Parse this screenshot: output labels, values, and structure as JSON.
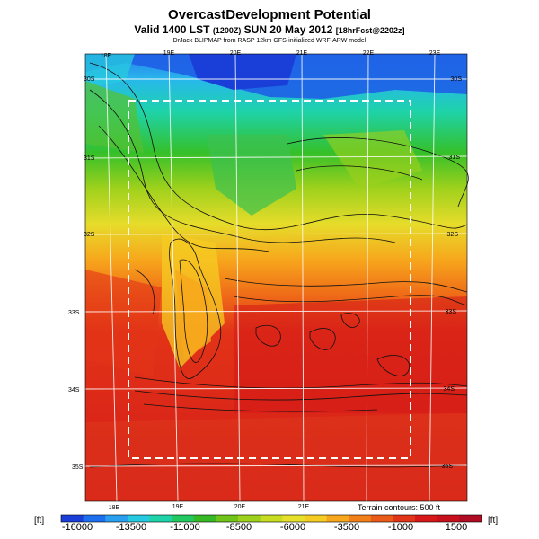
{
  "header": {
    "title": "OvercastDevelopment Potential",
    "subtitle_main": "Valid 1400 LST",
    "subtitle_utc": "(1200Z)",
    "subtitle_date": "SUN 20 May 2012",
    "subtitle_fcst": "[18hrFcst@2202z]",
    "credit": "DrJack BLIPMAP from RASP 12km GFS-initialized WRF-ARW model"
  },
  "map": {
    "lon_labels_top": [
      "18E",
      "19E",
      "20E",
      "21E",
      "22E",
      "23E"
    ],
    "lon_labels_bottom": [
      "18E",
      "19E",
      "20E",
      "21E"
    ],
    "lat_labels_left": [
      "30S",
      "31S",
      "32S",
      "33S",
      "34S",
      "35S"
    ],
    "lat_labels_right": [
      "30S",
      "31S",
      "32S",
      "33S",
      "34S",
      "35S"
    ],
    "terrain_note": "Terrain contours: 500 ft"
  },
  "colorbar": {
    "unit_left": "[ft]",
    "unit_right": "[ft]",
    "tick_labels": [
      "-16000",
      "-13500",
      "-11000",
      "-8500",
      "-6000",
      "-3500",
      "-1000",
      "1500"
    ],
    "range": [
      -16000,
      1500
    ],
    "colors": [
      "#1a3fd8",
      "#1e6ff0",
      "#2a9ff0",
      "#27c9e0",
      "#1ed3a8",
      "#23c860",
      "#37b825",
      "#70c318",
      "#9ed11c",
      "#c8dc22",
      "#e6e02a",
      "#f5cc22",
      "#f7a71c",
      "#f27f1a",
      "#ea5a18",
      "#e23418",
      "#d81818",
      "#c8101c",
      "#b00c24"
    ]
  }
}
